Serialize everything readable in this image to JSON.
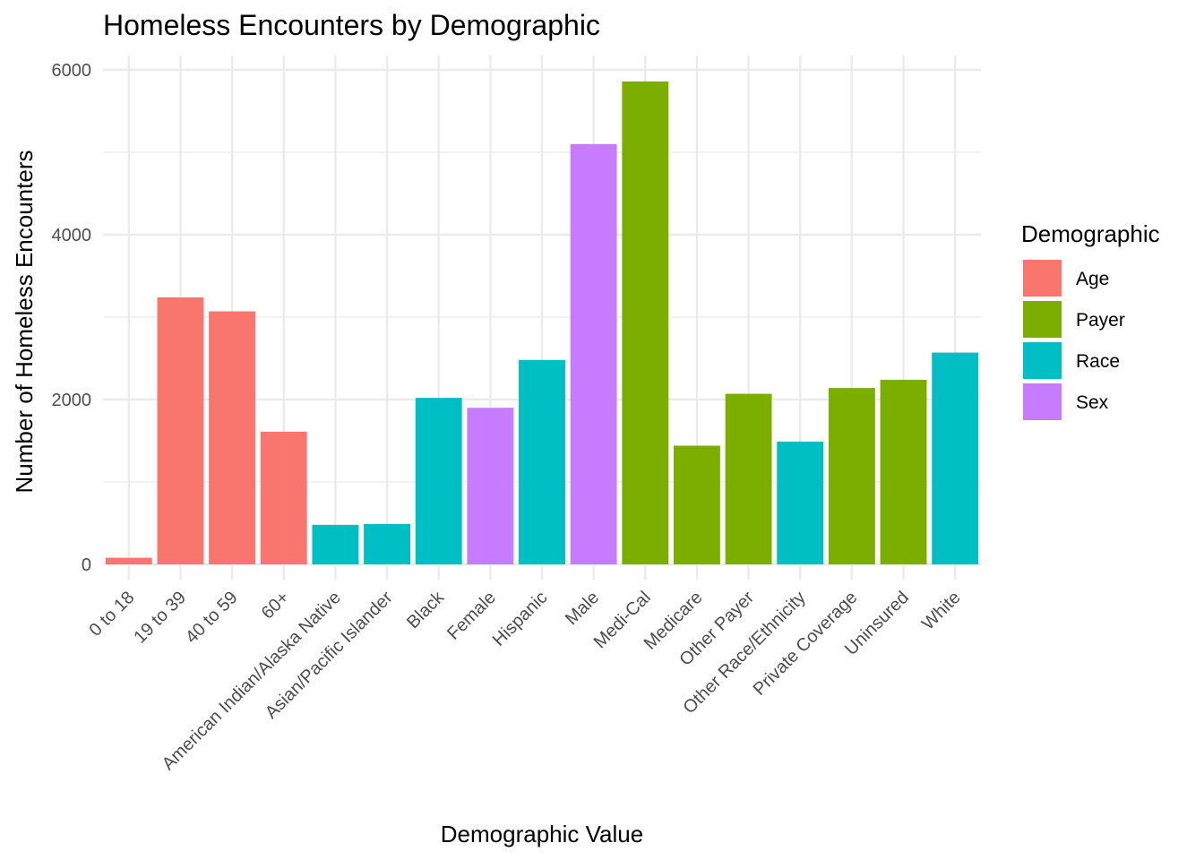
{
  "chart_data": {
    "type": "bar",
    "title": "Homeless Encounters by Demographic",
    "xlabel": "Demographic Value",
    "ylabel": "Number of Homeless Encounters",
    "ylim": [
      0,
      6150
    ],
    "yticks": [
      0,
      2000,
      4000,
      6000
    ],
    "grid": true,
    "legend": {
      "title": "Demographic",
      "position": "right",
      "entries": [
        {
          "label": "Age",
          "color": "#F8766D"
        },
        {
          "label": "Payer",
          "color": "#7CAE00"
        },
        {
          "label": "Race",
          "color": "#00BFC4"
        },
        {
          "label": "Sex",
          "color": "#C77CFF"
        }
      ]
    },
    "categories": [
      "0 to 18",
      "19 to 39",
      "40 to 59",
      "60+",
      "American Indian/Alaska Native",
      "Asian/Pacific Islander",
      "Black",
      "Female",
      "Hispanic",
      "Male",
      "Medi-Cal",
      "Medicare",
      "Other Payer",
      "Other Race/Ethnicity",
      "Private Coverage",
      "Uninsured",
      "White"
    ],
    "values": [
      80,
      3240,
      3070,
      1610,
      480,
      490,
      2020,
      1900,
      2480,
      5100,
      5860,
      1440,
      2070,
      1490,
      2140,
      2240,
      2570
    ],
    "groups": [
      "Age",
      "Age",
      "Age",
      "Age",
      "Race",
      "Race",
      "Race",
      "Sex",
      "Race",
      "Sex",
      "Payer",
      "Payer",
      "Payer",
      "Race",
      "Payer",
      "Payer",
      "Race"
    ]
  }
}
